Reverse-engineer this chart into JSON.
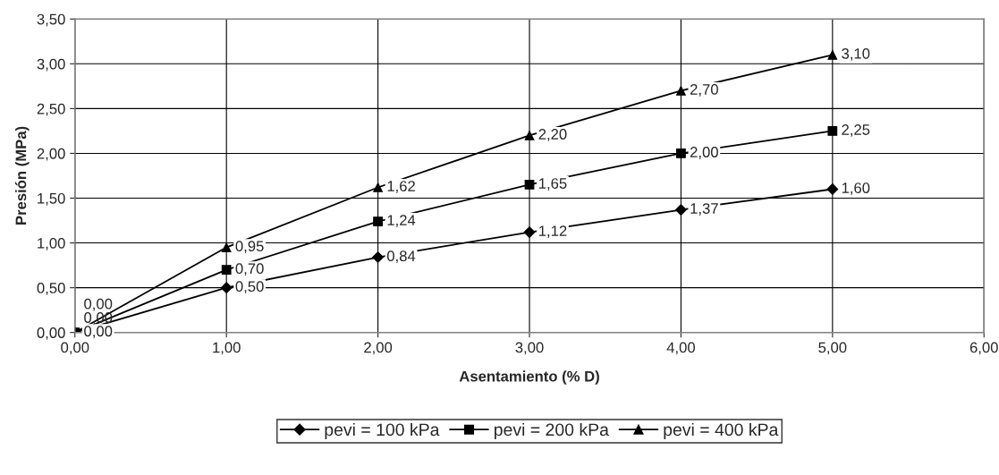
{
  "chart_data": {
    "type": "line",
    "xlabel": "Asentamiento (% D)",
    "ylabel": "Presión (MPa)",
    "x": [
      0,
      1,
      2,
      3,
      4,
      5
    ],
    "series": [
      {
        "name": "pevi = 100 kPa",
        "color": "#000000",
        "marker": "diamond",
        "values": [
          0,
          0.5,
          0.84,
          1.12,
          1.37,
          1.6
        ],
        "value_labels": [
          "0,00",
          "0,50",
          "0,84",
          "1,12",
          "1,37",
          "1,60"
        ]
      },
      {
        "name": "pevi = 200 kPa",
        "color": "#000000",
        "marker": "square",
        "values": [
          0,
          0.7,
          1.24,
          1.65,
          2.0,
          2.25
        ],
        "value_labels": [
          "0,00",
          "0,70",
          "1,24",
          "1,65",
          "2,00",
          "2,25"
        ]
      },
      {
        "name": "pevi = 400 kPa",
        "color": "#000000",
        "marker": "triangle",
        "values": [
          0,
          0.95,
          1.62,
          2.2,
          2.7,
          3.1
        ],
        "value_labels": [
          "0,00",
          "0,95",
          "1,62",
          "2,20",
          "2,70",
          "3,10"
        ]
      }
    ],
    "xlim": [
      0,
      6
    ],
    "xticks": [
      {
        "value": 0,
        "label": "0,00"
      },
      {
        "value": 1,
        "label": "1,00"
      },
      {
        "value": 2,
        "label": "2,00"
      },
      {
        "value": 3,
        "label": "3,00"
      },
      {
        "value": 4,
        "label": "4,00"
      },
      {
        "value": 5,
        "label": "5,00"
      },
      {
        "value": 6,
        "label": "6,00"
      }
    ],
    "ylim": [
      0,
      3.5
    ],
    "yticks": [
      {
        "value": 0,
        "label": "0,00"
      },
      {
        "value": 0.5,
        "label": "0,50"
      },
      {
        "value": 1,
        "label": "1,00"
      },
      {
        "value": 1.5,
        "label": "1,50"
      },
      {
        "value": 2,
        "label": "2,00"
      },
      {
        "value": 2.5,
        "label": "2,50"
      },
      {
        "value": 3,
        "label": "3,00"
      },
      {
        "value": 3.5,
        "label": "3,50"
      }
    ],
    "grid": true,
    "legend": "bottom",
    "line_style": "solid"
  }
}
